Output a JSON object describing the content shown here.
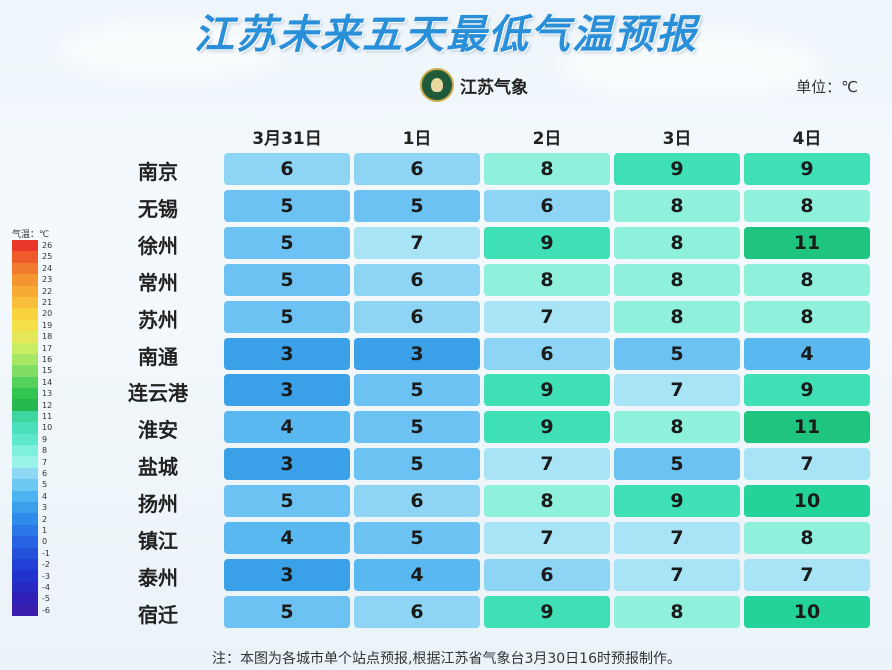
{
  "title": "江苏未来五天最低气温预报",
  "logo_text": "江苏气象",
  "unit": "单位：℃",
  "columns": [
    "3月31日",
    "1日",
    "2日",
    "3日",
    "4日"
  ],
  "rows": [
    {
      "city": "南京",
      "values": [
        "6",
        "6",
        "8",
        "9",
        "9"
      ]
    },
    {
      "city": "无锡",
      "values": [
        "5",
        "5",
        "6",
        "8",
        "8"
      ]
    },
    {
      "city": "徐州",
      "values": [
        "5",
        "7",
        "9",
        "8",
        "11"
      ]
    },
    {
      "city": "常州",
      "values": [
        "5",
        "6",
        "8",
        "8",
        "8"
      ]
    },
    {
      "city": "苏州",
      "values": [
        "5",
        "6",
        "7",
        "8",
        "8"
      ]
    },
    {
      "city": "南通",
      "values": [
        "3",
        "3",
        "6",
        "5",
        "4"
      ]
    },
    {
      "city": "连云港",
      "values": [
        "3",
        "5",
        "9",
        "7",
        "9"
      ]
    },
    {
      "city": "淮安",
      "values": [
        "4",
        "5",
        "9",
        "8",
        "11"
      ]
    },
    {
      "city": "盐城",
      "values": [
        "3",
        "5",
        "7",
        "5",
        "7"
      ]
    },
    {
      "city": "扬州",
      "values": [
        "5",
        "6",
        "8",
        "9",
        "10"
      ]
    },
    {
      "city": "镇江",
      "values": [
        "4",
        "5",
        "7",
        "7",
        "8"
      ]
    },
    {
      "city": "泰州",
      "values": [
        "3",
        "4",
        "6",
        "7",
        "7"
      ]
    },
    {
      "city": "宿迁",
      "values": [
        "5",
        "6",
        "9",
        "8",
        "10"
      ]
    }
  ],
  "legend": {
    "title": "气温：℃",
    "labels": [
      "26",
      "25",
      "24",
      "23",
      "22",
      "21",
      "20",
      "19",
      "18",
      "17",
      "16",
      "15",
      "14",
      "13",
      "12",
      "11",
      "10",
      "9",
      "8",
      "7",
      "6",
      "5",
      "4",
      "3",
      "2",
      "1",
      "0",
      "-1",
      "-2",
      "-3",
      "-4",
      "-5",
      "-6"
    ],
    "colors": [
      "#e8382a",
      "#ee5a2a",
      "#f27a2c",
      "#f5952f",
      "#f7ab34",
      "#f8c03a",
      "#f8d23f",
      "#f3df4a",
      "#e6e85a",
      "#c8ec62",
      "#a6e866",
      "#7fde63",
      "#55d25c",
      "#33c651",
      "#25b84c",
      "#3fd6a0",
      "#49e0bb",
      "#5ee8cb",
      "#7ef0dc",
      "#9af3e8",
      "#8fd8f5",
      "#6cc8f3",
      "#4bb3ef",
      "#3aa0ec",
      "#2f8ceb",
      "#2a78e8",
      "#2664e3",
      "#2451dc",
      "#2240d5",
      "#2232cc",
      "#2828c2",
      "#3020b8",
      "#3a1cae"
    ]
  },
  "value_colors": {
    "3": "#3aa0e8",
    "4": "#59b8f0",
    "5": "#6cc3f3",
    "6": "#8dd4f5",
    "7": "#a8e4f6",
    "8": "#8ff0db",
    "9": "#3fe0b6",
    "10": "#24d39a",
    "11": "#1fc57e"
  },
  "note": "注：本图为各城市单个站点预报,根据江苏省气象台3月30日16时预报制作。"
}
